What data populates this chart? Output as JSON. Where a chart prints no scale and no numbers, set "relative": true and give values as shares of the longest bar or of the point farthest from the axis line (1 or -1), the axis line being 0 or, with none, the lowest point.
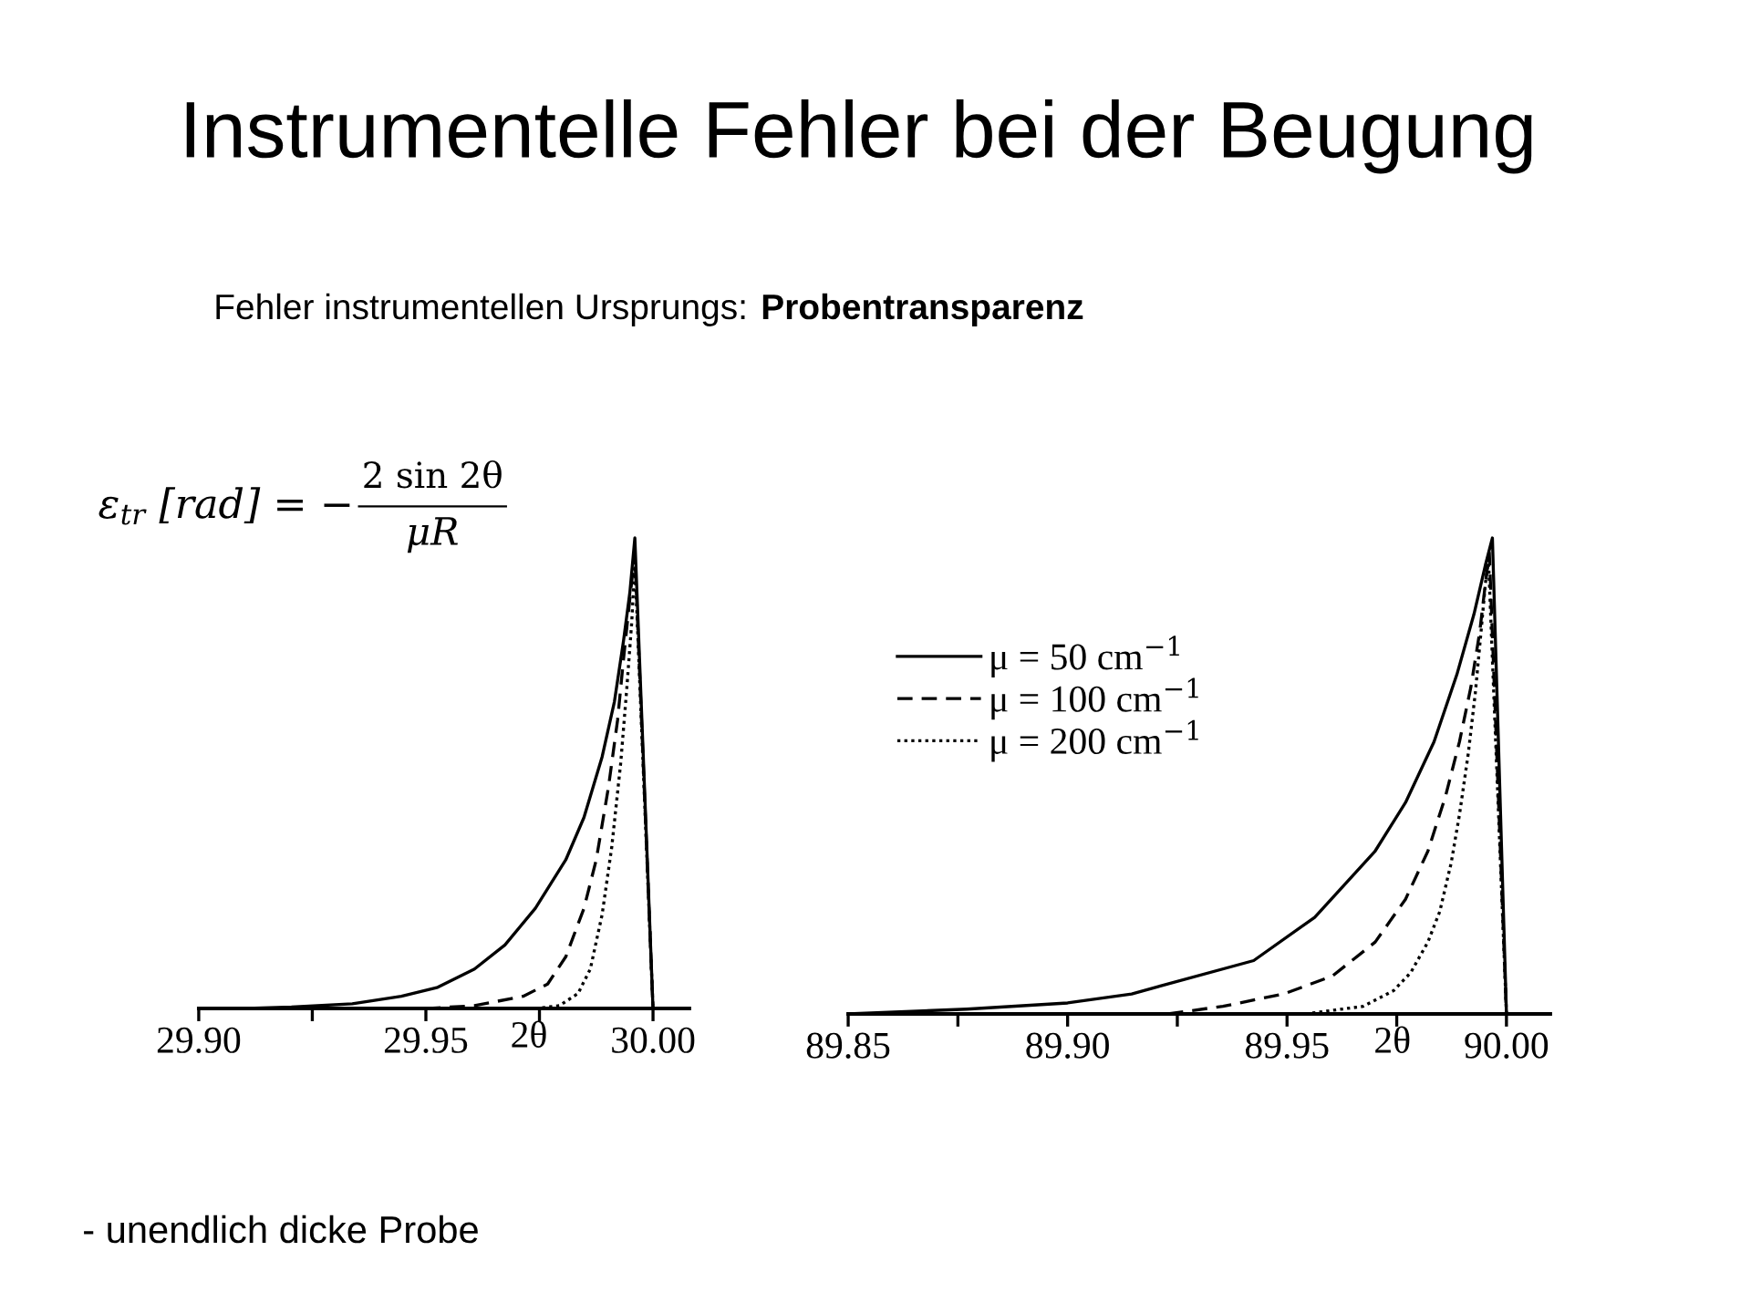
{
  "chart_data": [
    {
      "type": "line",
      "title": "Instrumentelle Fehler bei der Beugung",
      "subtitle": "Fehler instrumentellen Ursprungs: Probentransparenz",
      "annotations": [
        "ε$_{tr}$ [rad] = −",
        "2 sin 2θ",
        "μR",
        "- unendlich dicke Probe"
      ],
      "xlabel": "2θ",
      "relative": true,
      "xlim": [
        29.9,
        30.008
      ],
      "xticks": [
        {
          "value": 29.9,
          "label": "29.90"
        },
        {
          "value": 29.925,
          "label": null
        },
        {
          "value": 29.95,
          "label": "29.95"
        },
        {
          "value": 29.975,
          "label": null
        },
        {
          "value": 30.0,
          "label": "30.00"
        }
      ],
      "series": [
        {
          "color": "#000000",
          "line_style": "solid",
          "x": [
            29.909,
            29.9204,
            29.9338,
            29.9446,
            29.9526,
            29.9607,
            29.9674,
            29.9741,
            29.9808,
            29.9848,
            29.9888,
            29.9915,
            29.9935,
            29.9949,
            29.996,
            30.0
          ],
          "values": [
            0,
            0.003,
            0.01,
            0.026,
            0.045,
            0.084,
            0.135,
            0.213,
            0.316,
            0.406,
            0.535,
            0.652,
            0.781,
            0.884,
            1.0,
            0
          ]
        },
        {
          "color": "#000000",
          "line_style": "dashed",
          "x": [
            29.9499,
            29.9607,
            29.9714,
            29.9768,
            29.9808,
            29.9848,
            29.9875,
            29.9902,
            29.9922,
            29.9935,
            29.9949,
            29.996,
            30.0
          ],
          "values": [
            0,
            0.006,
            0.026,
            0.052,
            0.11,
            0.213,
            0.316,
            0.471,
            0.613,
            0.742,
            0.871,
            0.968,
            0
          ]
        },
        {
          "color": "#000000",
          "line_style": "dotted",
          "x": [
            29.9741,
            29.9794,
            29.9835,
            29.9862,
            29.9888,
            29.9909,
            29.9929,
            29.9942,
            29.9953,
            29.996,
            30.0
          ],
          "values": [
            0,
            0.006,
            0.032,
            0.084,
            0.2,
            0.342,
            0.523,
            0.677,
            0.819,
            0.948,
            0
          ]
        }
      ]
    },
    {
      "type": "line",
      "xlabel": "2θ",
      "relative": true,
      "xlim": [
        89.85,
        90.01
      ],
      "legend": "top left",
      "xticks": [
        {
          "value": 89.85,
          "label": "89.85"
        },
        {
          "value": 89.875,
          "label": null
        },
        {
          "value": 89.9,
          "label": "89.90"
        },
        {
          "value": 89.925,
          "label": null
        },
        {
          "value": 89.95,
          "label": "89.95"
        },
        {
          "value": 89.975,
          "label": null
        },
        {
          "value": 90.0,
          "label": "90.00"
        }
      ],
      "series": [
        {
          "name": "μ = 50 cm$^{−1}$",
          "color": "#000000",
          "line_style": "solid",
          "x": [
            89.85,
            89.877,
            89.9,
            89.9146,
            89.9424,
            89.9563,
            89.97,
            89.977,
            89.9835,
            89.9887,
            89.9926,
            89.9952,
            89.9968,
            90.0
          ],
          "values": [
            0,
            0.01,
            0.023,
            0.042,
            0.112,
            0.203,
            0.341,
            0.444,
            0.572,
            0.713,
            0.84,
            0.943,
            1.0,
            0
          ]
        },
        {
          "name": "μ = 100 cm$^{−1}$",
          "color": "#000000",
          "line_style": "dashed",
          "x": [
            89.9229,
            89.9354,
            89.9493,
            89.9604,
            89.9701,
            89.977,
            89.9821,
            89.9861,
            89.9893,
            89.9919,
            89.9939,
            89.9952,
            89.9961,
            90.0
          ],
          "values": [
            0,
            0.016,
            0.042,
            0.08,
            0.151,
            0.241,
            0.342,
            0.457,
            0.572,
            0.687,
            0.802,
            0.904,
            0.969,
            0
          ]
        },
        {
          "name": "μ = 200 cm$^{−1}$",
          "color": "#000000",
          "line_style": "dotted",
          "x": [
            89.9542,
            89.9674,
            89.9743,
            89.9782,
            89.9821,
            89.9848,
            89.9874,
            89.9893,
            89.9913,
            89.9929,
            89.9942,
            89.9952,
            89.9959,
            90.0
          ],
          "values": [
            0,
            0.016,
            0.049,
            0.087,
            0.151,
            0.215,
            0.317,
            0.419,
            0.547,
            0.674,
            0.802,
            0.904,
            0.955,
            0
          ]
        }
      ]
    }
  ]
}
